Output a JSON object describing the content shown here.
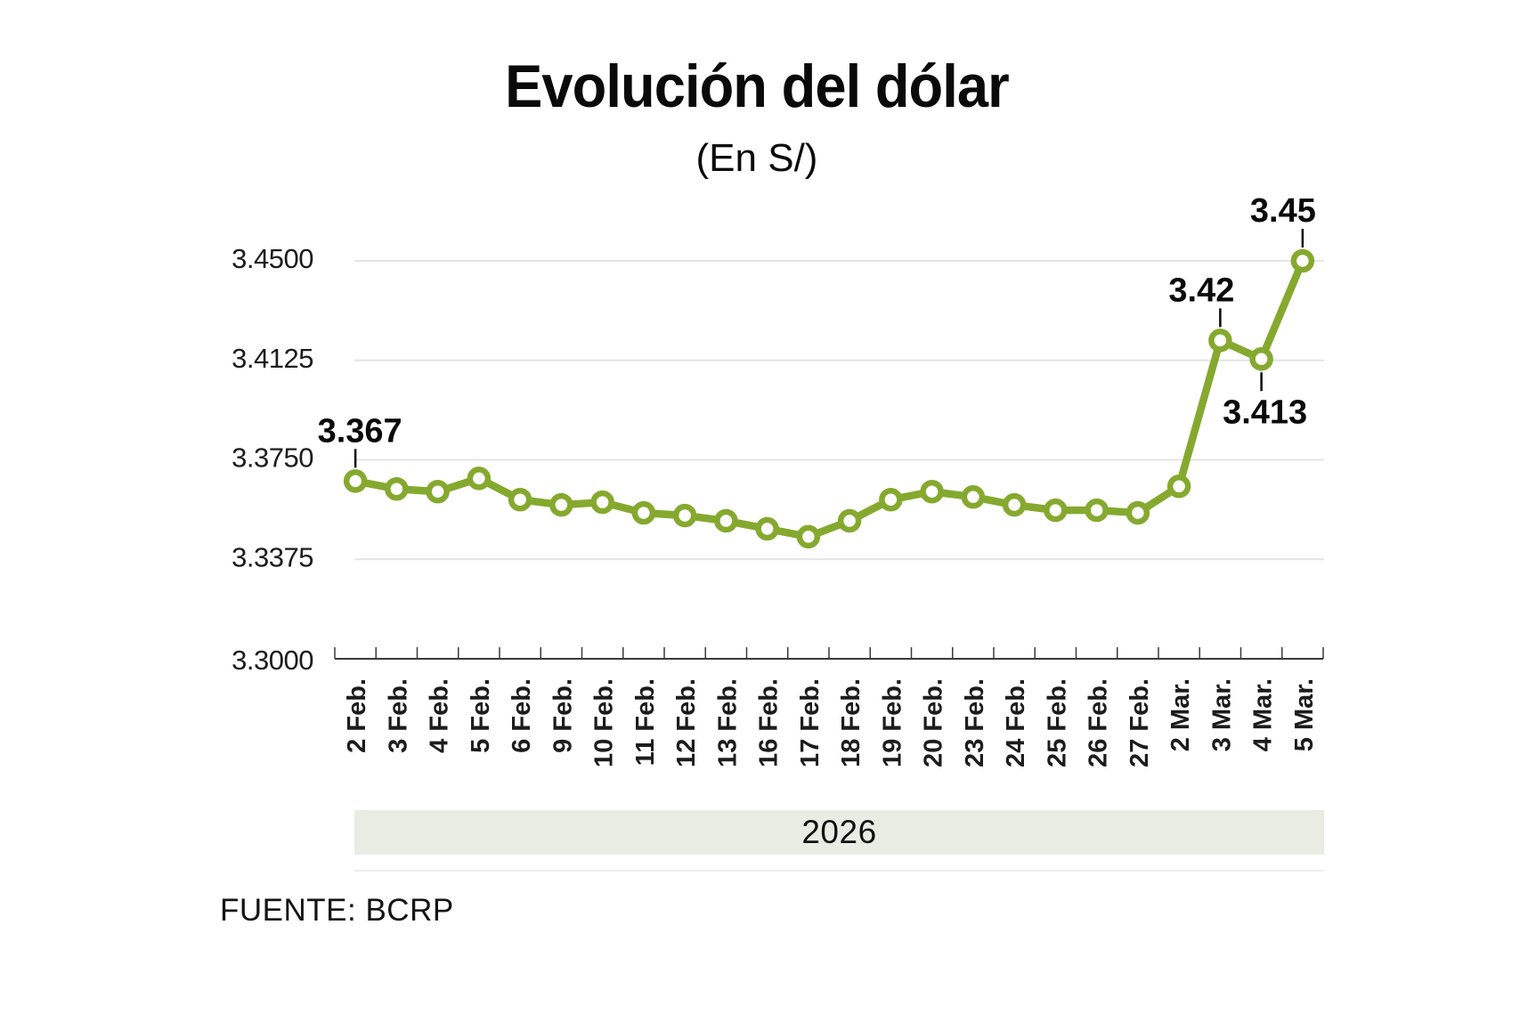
{
  "header": {
    "title": "Evolución del dólar",
    "subtitle": "(En S/)"
  },
  "year_band": {
    "label": "2026"
  },
  "footer": {
    "source": "FUENTE: BCRP"
  },
  "colors": {
    "line": "#85a92e",
    "marker_fill": "#ffffff",
    "gridline": "#e4e4e4",
    "axis": "#3a3a3a",
    "band_bg": "#e9ece3",
    "annotation_text": "#0a0a0a",
    "tick_label": "#1c1c1c"
  },
  "chart_data": {
    "type": "line",
    "title": "Evolución del dólar",
    "subtitle": "(En S/)",
    "source": "FUENTE: BCRP",
    "x_period_label": "2026",
    "categories": [
      "2 Feb.",
      "3 Feb.",
      "4 Feb.",
      "5 Feb.",
      "6 Feb.",
      "9 Feb.",
      "10 Feb.",
      "11 Feb.",
      "12 Feb.",
      "13 Feb.",
      "16 Feb.",
      "17 Feb.",
      "18 Feb.",
      "19 Feb.",
      "20 Feb.",
      "23 Feb.",
      "24 Feb.",
      "25 Feb.",
      "26 Feb.",
      "27 Feb.",
      "2 Mar.",
      "3 Mar.",
      "4 Mar.",
      "5 Mar."
    ],
    "values": [
      3.367,
      3.364,
      3.363,
      3.368,
      3.36,
      3.358,
      3.359,
      3.355,
      3.354,
      3.352,
      3.349,
      3.346,
      3.352,
      3.36,
      3.363,
      3.361,
      3.358,
      3.356,
      3.356,
      3.355,
      3.365,
      3.42,
      3.413,
      3.45
    ],
    "ylim": [
      3.3,
      3.45
    ],
    "yticks": [
      "3.4500",
      "3.4125",
      "3.3750",
      "3.3375",
      "3.3000"
    ],
    "grid": true,
    "legend": "none",
    "annotations": [
      {
        "category": "2 Feb.",
        "label": "3.367",
        "placement": "above",
        "dx": 5
      },
      {
        "category": "3 Mar.",
        "label": "3.42",
        "placement": "above",
        "dx": -21
      },
      {
        "category": "4 Mar.",
        "label": "3.413",
        "placement": "below",
        "dx": 4
      },
      {
        "category": "5 Mar.",
        "label": "3.45",
        "placement": "above",
        "dx": -22
      }
    ]
  }
}
